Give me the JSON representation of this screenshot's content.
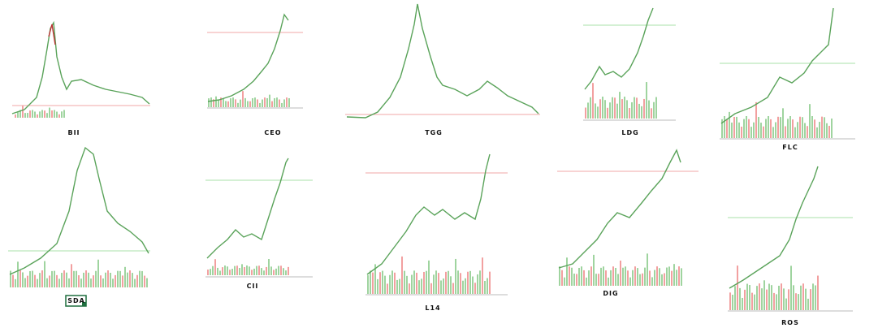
{
  "panels": [
    {
      "label": "BII"
    },
    {
      "label": "CEO"
    },
    {
      "label": "TGG"
    },
    {
      "label": "LDG"
    },
    {
      "label": "FLC"
    },
    {
      "label": "SDA"
    },
    {
      "label": "CII"
    },
    {
      "label": "L14"
    },
    {
      "label": "DIG"
    },
    {
      "label": "ROS"
    }
  ]
}
